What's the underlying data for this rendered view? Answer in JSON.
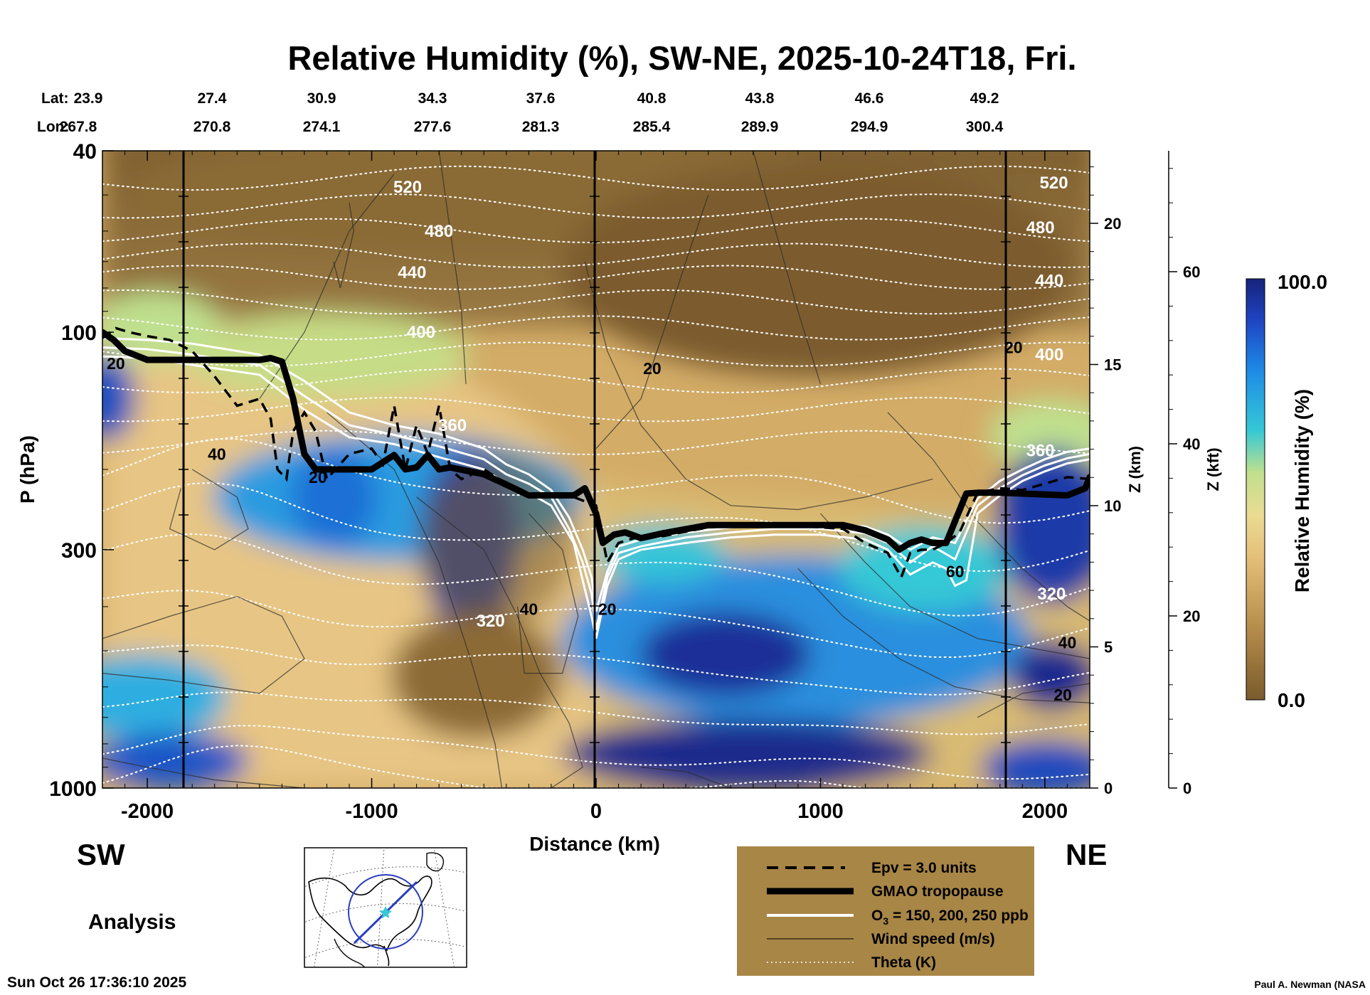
{
  "header": {
    "title": "Relative Humidity (%), SW-NE, 2025-10-24T18, Fri.",
    "lat_label": "Lat:",
    "lon_label": "Lon:",
    "lat": [
      "23.9",
      "27.4",
      "30.9",
      "34.3",
      "37.6",
      "40.8",
      "43.8",
      "46.6",
      "49.2"
    ],
    "lon": [
      "267.8",
      "270.8",
      "274.1",
      "277.6",
      "281.3",
      "285.4",
      "289.9",
      "294.9",
      "300.4"
    ]
  },
  "chart_data": {
    "type": "heatmap",
    "title": "Relative Humidity (%), SW-NE, 2025-10-24T18, Fri.",
    "xlabel": "Distance (km)",
    "ylabel": "P (hPa)",
    "xlim": [
      -2200,
      2200
    ],
    "ylim": [
      1000,
      40
    ],
    "y_scale": "log",
    "x_ticks": [
      "-2000",
      "-1000",
      "0",
      "1000",
      "2000"
    ],
    "x_tick_values": [
      -2000,
      -1000,
      0,
      1000,
      2000
    ],
    "y_ticks": [
      "40",
      "100",
      "300",
      "1000"
    ],
    "y_tick_values": [
      40,
      100,
      300,
      1000
    ],
    "z_km_ticks": [
      "20",
      "15",
      "10",
      "5",
      "0"
    ],
    "z_km_values": [
      20,
      15,
      10,
      5,
      0
    ],
    "z_km_label": "Z (km)",
    "z_kft_ticks": [
      "60",
      "40",
      "20",
      "0"
    ],
    "z_kft_values": [
      60,
      40,
      20,
      0
    ],
    "z_kft_label": "Z (kft)",
    "colorbar": {
      "label": "Relative Humidity (%)",
      "max": "100.0",
      "min": "0.0"
    },
    "theta_labels": [
      {
        "text": "520",
        "x": -840,
        "p": 48
      },
      {
        "text": "480",
        "x": -700,
        "p": 60
      },
      {
        "text": "440",
        "x": -820,
        "p": 74
      },
      {
        "text": "400",
        "x": -780,
        "p": 100
      },
      {
        "text": "360",
        "x": -640,
        "p": 160
      },
      {
        "text": "320",
        "x": -470,
        "p": 430
      },
      {
        "text": "520",
        "x": 2040,
        "p": 47
      },
      {
        "text": "480",
        "x": 1980,
        "p": 59
      },
      {
        "text": "440",
        "x": 2020,
        "p": 77
      },
      {
        "text": "400",
        "x": 2020,
        "p": 112
      },
      {
        "text": "360",
        "x": 1980,
        "p": 182
      },
      {
        "text": "320",
        "x": 2030,
        "p": 375
      }
    ],
    "wind_labels": [
      {
        "text": "20",
        "x": -2140,
        "p": 117
      },
      {
        "text": "40",
        "x": -1690,
        "p": 185
      },
      {
        "text": "20",
        "x": -1240,
        "p": 208
      },
      {
        "text": "20",
        "x": 250,
        "p": 120
      },
      {
        "text": "40",
        "x": -300,
        "p": 405
      },
      {
        "text": "20",
        "x": 50,
        "p": 405
      },
      {
        "text": "20",
        "x": 1860,
        "p": 108
      },
      {
        "text": "60",
        "x": 1600,
        "p": 335
      },
      {
        "text": "40",
        "x": 2100,
        "p": 480
      },
      {
        "text": "20",
        "x": 2080,
        "p": 625
      }
    ],
    "series": [
      {
        "name": "GMAO tropopause",
        "x": [
          -2200,
          -2150,
          -2100,
          -2000,
          -1800,
          -1500,
          -1450,
          -1400,
          -1350,
          -1300,
          -1250,
          -1000,
          -900,
          -850,
          -800,
          -750,
          -700,
          -650,
          -500,
          -400,
          -300,
          -100,
          -50,
          0,
          30,
          80,
          130,
          200,
          300,
          500,
          1100,
          1200,
          1300,
          1350,
          1400,
          1450,
          1500,
          1560,
          1650,
          1700,
          1800,
          2100,
          2180,
          2200
        ],
        "p": [
          100,
          104,
          110,
          115,
          115,
          115,
          114,
          116,
          140,
          185,
          200,
          200,
          186,
          200,
          198,
          186,
          200,
          198,
          205,
          216,
          228,
          228,
          220,
          250,
          290,
          278,
          275,
          283,
          276,
          265,
          265,
          272,
          285,
          300,
          290,
          285,
          290,
          290,
          226,
          225,
          225,
          228,
          220,
          208
        ]
      },
      {
        "name": "Epv = 3.0 units",
        "x": [
          -2200,
          -2140,
          -2080,
          -2000,
          -1900,
          -1800,
          -1700,
          -1600,
          -1500,
          -1450,
          -1420,
          -1380,
          -1350,
          -1300,
          -1250,
          -1200,
          -1100,
          -1000,
          -950,
          -900,
          -850,
          -800,
          -750,
          -700,
          -650,
          -600,
          -500,
          -400,
          -300,
          -200,
          -100,
          0,
          50,
          100,
          200,
          300,
          500,
          700,
          900,
          1100,
          1200,
          1300,
          1360,
          1400,
          1450,
          1500,
          1560,
          1620,
          1700,
          1800,
          1900,
          2000,
          2100,
          2200
        ],
        "p": [
          103,
          98,
          100,
          102,
          104,
          110,
          125,
          145,
          140,
          155,
          200,
          210,
          165,
          150,
          165,
          210,
          185,
          180,
          195,
          145,
          200,
          160,
          185,
          145,
          200,
          210,
          200,
          215,
          230,
          230,
          230,
          240,
          320,
          290,
          280,
          280,
          268,
          265,
          266,
          270,
          290,
          305,
          345,
          305,
          300,
          300,
          290,
          275,
          225,
          220,
          222,
          215,
          208,
          210
        ]
      },
      {
        "name": "O3 = 150 ppb",
        "x": [
          -2200,
          -2000,
          -1800,
          -1500,
          -1300,
          -1100,
          -900,
          -700,
          -500,
          -400,
          -300,
          -200,
          -120,
          -60,
          -20,
          0,
          50,
          100,
          200,
          400,
          600,
          800,
          1000,
          1200,
          1300,
          1400,
          1500,
          1600,
          1700,
          1800,
          1900,
          2000,
          2100,
          2200
        ],
        "p": [
          103,
          104,
          106,
          112,
          128,
          150,
          160,
          167,
          180,
          195,
          205,
          222,
          255,
          300,
          345,
          410,
          335,
          295,
          285,
          275,
          268,
          262,
          262,
          267,
          278,
          300,
          282,
          290,
          232,
          212,
          200,
          190,
          183,
          180
        ]
      },
      {
        "name": "O3 = 200 ppb",
        "x": [
          -2200,
          -2000,
          -1800,
          -1500,
          -1300,
          -1100,
          -900,
          -700,
          -500,
          -400,
          -300,
          -200,
          -120,
          -60,
          -20,
          0,
          50,
          100,
          200,
          400,
          600,
          800,
          1000,
          1200,
          1300,
          1400,
          1500,
          1600,
          1700,
          1800,
          1900,
          2000,
          2100,
          2200
        ],
        "p": [
          108,
          109,
          112,
          118,
          138,
          160,
          168,
          178,
          190,
          205,
          215,
          230,
          270,
          320,
          375,
          450,
          345,
          305,
          295,
          282,
          275,
          270,
          270,
          276,
          290,
          320,
          295,
          315,
          240,
          220,
          206,
          196,
          189,
          185
        ]
      },
      {
        "name": "O3 = 250 ppb",
        "x": [
          -2200,
          -2000,
          -1800,
          -1500,
          -1300,
          -1100,
          -900,
          -700,
          -500,
          -400,
          -300,
          -200,
          -100,
          -60,
          -20,
          0,
          50,
          100,
          200,
          400,
          600,
          800,
          1000,
          1200,
          1300,
          1400,
          1500,
          1560,
          1600,
          1650,
          1700,
          1800,
          1900,
          2000,
          2100,
          2200
        ],
        "p": [
          113,
          114,
          118,
          124,
          148,
          170,
          176,
          188,
          200,
          215,
          225,
          240,
          290,
          350,
          420,
          470,
          360,
          315,
          300,
          290,
          282,
          278,
          278,
          285,
          300,
          340,
          320,
          330,
          360,
          350,
          250,
          228,
          212,
          202,
          194,
          190
        ]
      },
      {
        "name": "Wind speed (m/s)",
        "x": [],
        "p": []
      },
      {
        "name": "Theta (K)",
        "x": [],
        "p": []
      }
    ],
    "legend": {
      "placement": "bottom-center",
      "items": [
        "Epv = 3.0 units",
        "GMAO tropopause",
        "O3 = 150, 200, 250 ppb",
        "Wind speed (m/s)",
        "Theta (K)"
      ]
    }
  },
  "labels": {
    "sw": "SW",
    "ne": "NE",
    "analysis": "Analysis",
    "timestamp": "Sun Oct 26 17:36:10 2025",
    "credit": "Paul A. Newman (NASA"
  },
  "legend": {
    "epv": "Epv = 3.0 units",
    "trop": "GMAO tropopause",
    "o3_prefix": "O",
    "o3_sub": "3",
    "o3_rest": " = 150, 200, 250 ppb",
    "wind": "Wind speed (m/s)",
    "theta": "Theta (K)"
  },
  "colors": {
    "brown_dark": "#7a5b2c",
    "brown": "#a3834c",
    "tan": "#d6b06b",
    "yellow": "#e9d58a",
    "green": "#bfe08e",
    "cyan": "#35c8d6",
    "blue": "#1e76e0",
    "navy": "#1b2b8e",
    "legend_bg": "#a88646"
  }
}
